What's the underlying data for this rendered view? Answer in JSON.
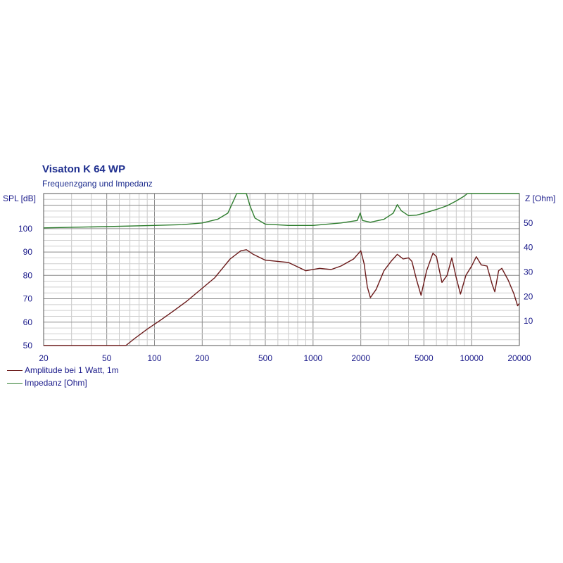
{
  "title": "Visaton K 64 WP",
  "subtitle": "Frequenzgang und Impedanz",
  "chart_data": {
    "type": "line",
    "xscale": "log",
    "xlim": [
      20,
      20000
    ],
    "x_ticks": [
      20,
      50,
      100,
      200,
      500,
      1000,
      2000,
      5000,
      10000,
      20000
    ],
    "y_left": {
      "label": "SPL [dB]",
      "lim": [
        50,
        115
      ],
      "ticks": [
        50,
        60,
        70,
        80,
        90,
        100
      ]
    },
    "y_right": {
      "label": "Z [Ohm]",
      "lim": [
        0,
        62
      ],
      "ticks": [
        10,
        20,
        30,
        40,
        50
      ]
    },
    "grid": true,
    "legend_position": "bottom-left",
    "series": [
      {
        "name": "Amplitude bei 1 Watt, 1m",
        "axis": "left",
        "color": "#6b1a1a",
        "points": [
          [
            20,
            50
          ],
          [
            66,
            50
          ],
          [
            75,
            53
          ],
          [
            90,
            57
          ],
          [
            110,
            61
          ],
          [
            130,
            64.5
          ],
          [
            160,
            69
          ],
          [
            200,
            74.5
          ],
          [
            240,
            79
          ],
          [
            300,
            87
          ],
          [
            350,
            90.5
          ],
          [
            380,
            91
          ],
          [
            420,
            89
          ],
          [
            500,
            86.5
          ],
          [
            600,
            86
          ],
          [
            700,
            85.5
          ],
          [
            900,
            82
          ],
          [
            1100,
            83
          ],
          [
            1300,
            82.5
          ],
          [
            1500,
            84
          ],
          [
            1800,
            87
          ],
          [
            2000,
            90.5
          ],
          [
            2100,
            85
          ],
          [
            2200,
            75
          ],
          [
            2300,
            70.5
          ],
          [
            2500,
            74
          ],
          [
            2800,
            82
          ],
          [
            3100,
            86
          ],
          [
            3400,
            89
          ],
          [
            3700,
            87
          ],
          [
            4000,
            87.5
          ],
          [
            4200,
            86
          ],
          [
            4500,
            78
          ],
          [
            4800,
            71.5
          ],
          [
            5200,
            82
          ],
          [
            5700,
            89.5
          ],
          [
            6000,
            88
          ],
          [
            6500,
            77
          ],
          [
            7000,
            80
          ],
          [
            7500,
            87.5
          ],
          [
            8000,
            79
          ],
          [
            8500,
            72
          ],
          [
            9200,
            80
          ],
          [
            10000,
            84
          ],
          [
            10700,
            88
          ],
          [
            11500,
            84.5
          ],
          [
            12500,
            84
          ],
          [
            13500,
            76
          ],
          [
            14000,
            73
          ],
          [
            14800,
            82
          ],
          [
            15500,
            83
          ],
          [
            17000,
            78
          ],
          [
            18500,
            72
          ],
          [
            19500,
            67
          ],
          [
            20000,
            68
          ]
        ]
      },
      {
        "name": "Impedanz [Ohm]",
        "axis": "right",
        "color": "#2e7d2e",
        "points": [
          [
            20,
            48
          ],
          [
            50,
            48.5
          ],
          [
            100,
            49
          ],
          [
            150,
            49.3
          ],
          [
            200,
            50
          ],
          [
            250,
            51.5
          ],
          [
            290,
            54
          ],
          [
            320,
            60
          ],
          [
            330,
            62
          ],
          [
            380,
            62
          ],
          [
            400,
            57
          ],
          [
            430,
            52
          ],
          [
            500,
            49.5
          ],
          [
            700,
            49
          ],
          [
            1000,
            49
          ],
          [
            1500,
            50
          ],
          [
            1900,
            51
          ],
          [
            1980,
            54
          ],
          [
            2050,
            51
          ],
          [
            2300,
            50.3
          ],
          [
            2800,
            51.5
          ],
          [
            3200,
            54
          ],
          [
            3400,
            57.5
          ],
          [
            3600,
            55
          ],
          [
            4000,
            53
          ],
          [
            4500,
            53.2
          ],
          [
            5000,
            54
          ],
          [
            6000,
            55.5
          ],
          [
            7000,
            57
          ],
          [
            8000,
            59
          ],
          [
            9000,
            61
          ],
          [
            9400,
            62
          ],
          [
            20000,
            62
          ]
        ]
      }
    ]
  }
}
